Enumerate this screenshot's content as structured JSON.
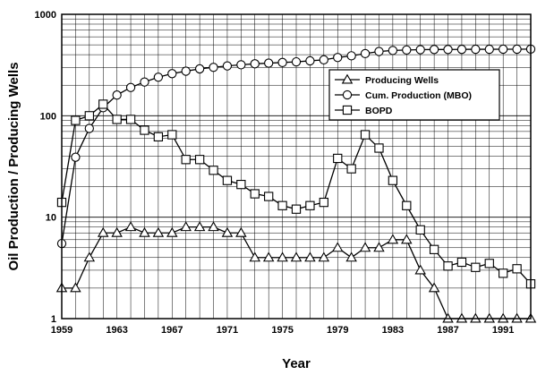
{
  "chart_data": {
    "type": "line",
    "title": "",
    "xlabel": "Year",
    "ylabel": "Oil Production / Producing Wells",
    "x_range": [
      1959,
      1993
    ],
    "y_range": [
      1,
      1000
    ],
    "y_scale": "log",
    "grid": true,
    "legend_position": "top-right",
    "x_ticks": [
      "1959",
      "1963",
      "1967",
      "1971",
      "1975",
      "1979",
      "1983",
      "1987",
      "1991"
    ],
    "y_ticks": [
      "1",
      "10",
      "100",
      "1000"
    ],
    "series": [
      {
        "name": "Producing Wells",
        "marker": "triangle",
        "x": [
          1959,
          1960,
          1961,
          1962,
          1963,
          1964,
          1965,
          1966,
          1967,
          1968,
          1969,
          1970,
          1971,
          1972,
          1973,
          1974,
          1975,
          1976,
          1977,
          1978,
          1979,
          1980,
          1981,
          1982,
          1983,
          1984,
          1985,
          1986,
          1987,
          1988,
          1989,
          1990,
          1991,
          1992,
          1993
        ],
        "y": [
          2,
          2,
          4,
          7,
          7,
          8,
          7,
          7,
          7,
          8,
          8,
          8,
          7,
          7,
          4,
          4,
          4,
          4,
          4,
          4,
          5,
          4,
          5,
          5,
          6,
          6,
          3,
          2,
          1,
          1,
          1,
          1,
          1,
          1,
          1
        ]
      },
      {
        "name": "Cum. Production (MBO)",
        "marker": "circle",
        "x": [
          1959,
          1960,
          1961,
          1962,
          1963,
          1964,
          1965,
          1966,
          1967,
          1968,
          1969,
          1970,
          1971,
          1972,
          1973,
          1974,
          1975,
          1976,
          1977,
          1978,
          1979,
          1980,
          1981,
          1982,
          1983,
          1984,
          1985,
          1986,
          1987,
          1988,
          1989,
          1990,
          1991,
          1992,
          1993
        ],
        "y": [
          5.5,
          39,
          75,
          120,
          160,
          190,
          215,
          240,
          260,
          275,
          290,
          300,
          310,
          318,
          325,
          330,
          335,
          340,
          348,
          356,
          375,
          390,
          410,
          430,
          440,
          445,
          448,
          450,
          450,
          451,
          452,
          452,
          453,
          453,
          454
        ]
      },
      {
        "name": "BOPD",
        "marker": "square",
        "x": [
          1959,
          1960,
          1961,
          1962,
          1963,
          1964,
          1965,
          1966,
          1967,
          1968,
          1969,
          1970,
          1971,
          1972,
          1973,
          1974,
          1975,
          1976,
          1977,
          1978,
          1979,
          1980,
          1981,
          1982,
          1983,
          1984,
          1985,
          1986,
          1987,
          1988,
          1989,
          1990,
          1991,
          1992,
          1993
        ],
        "y": [
          14,
          90,
          100,
          130,
          92,
          92,
          72,
          62,
          65,
          37,
          37,
          29,
          23,
          21,
          17,
          16,
          13,
          12,
          13,
          14,
          38,
          30,
          65,
          48,
          23,
          13,
          7.5,
          4.8,
          3.3,
          3.6,
          3.2,
          3.5,
          2.8,
          3.1,
          2.2
        ]
      }
    ]
  }
}
